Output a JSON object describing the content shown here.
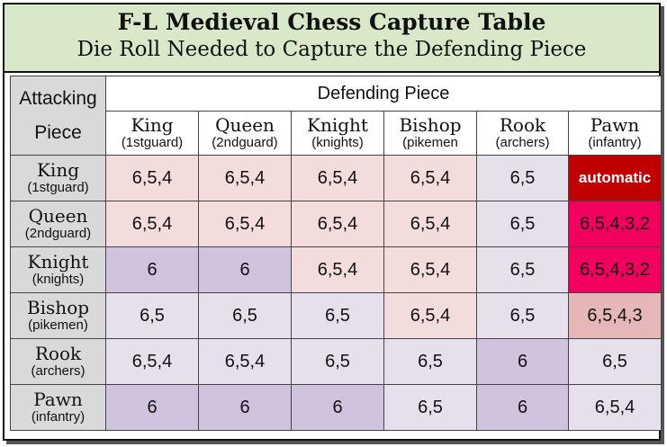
{
  "title": "F-L Medieval Chess Capture Table",
  "subtitle": "Die Roll Needed to Capture the Defending Piece",
  "corner_label": [
    "Attacking",
    "Piece"
  ],
  "defending_label": "Defending Piece",
  "pieces": [
    {
      "name": "King",
      "sub": "(1stguard)"
    },
    {
      "name": "Queen",
      "sub": "(2ndguard)"
    },
    {
      "name": "Knight",
      "sub": "(knights)"
    },
    {
      "name": "Bishop",
      "sub": "(pikemen"
    },
    {
      "name": "Rook",
      "sub": "(archers)"
    },
    {
      "name": "Pawn",
      "sub": "(infantry)"
    }
  ],
  "row_pieces": [
    {
      "name": "King",
      "sub": "(1stguard)"
    },
    {
      "name": "Queen",
      "sub": "(2ndguard)"
    },
    {
      "name": "Knight",
      "sub": "(knights)"
    },
    {
      "name": "Bishop",
      "sub": "(pikemen)"
    },
    {
      "name": "Rook",
      "sub": "(archers)"
    },
    {
      "name": "Pawn",
      "sub": "(infantry)"
    }
  ],
  "rows": [
    [
      "6,5,4",
      "6,5,4",
      "6,5,4",
      "6,5,4",
      "6,5",
      "automatic"
    ],
    [
      "6,5,4",
      "6,5,4",
      "6,5,4",
      "6,5,4",
      "6,5",
      "6,5,4,3,2"
    ],
    [
      "6",
      "6",
      "6,5,4",
      "6,5,4",
      "6,5",
      "6,5,4,3,2"
    ],
    [
      "6,5",
      "6,5",
      "6,5",
      "6,5,4",
      "6,5",
      "6,5,4,3"
    ],
    [
      "6,5,4",
      "6,5,4",
      "6,5",
      "6,5",
      "6",
      "6,5"
    ],
    [
      "6",
      "6",
      "6",
      "6,5",
      "6",
      "6,5,4"
    ]
  ],
  "cell_classes": [
    [
      "pink",
      "pink",
      "pink",
      "pink",
      "lav",
      "red"
    ],
    [
      "pink",
      "pink",
      "pink",
      "pink",
      "lav",
      "mag"
    ],
    [
      "purple",
      "purple",
      "pink",
      "pink",
      "lav",
      "mag"
    ],
    [
      "lav",
      "lav",
      "lav",
      "pink",
      "lav",
      "rose"
    ],
    [
      "lav",
      "lav",
      "lav",
      "lav",
      "purple",
      "lav"
    ],
    [
      "purple",
      "purple",
      "purple",
      "lav",
      "purple",
      "lav"
    ]
  ],
  "colors": {
    "title_bg": "#d8e8c8",
    "header_gray": "#d9d9d9",
    "pink": "#f3dcdc",
    "lavender": "#e5e0ec",
    "purple": "#cfc3de",
    "red": "#c00000",
    "magenta": "#f2005f",
    "rose": "#e6b7b7"
  }
}
